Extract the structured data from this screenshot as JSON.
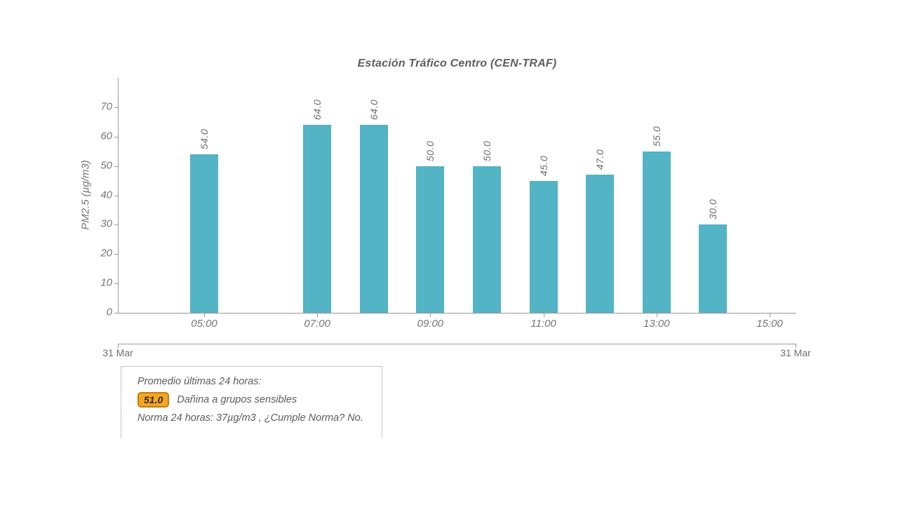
{
  "chart_data": {
    "type": "bar",
    "title": "Estación Tráfico Centro (CEN-TRAF)",
    "xlabel": "",
    "ylabel": "PM2.5 (µg/m3)",
    "grid": false,
    "legend": "none",
    "series": [
      {
        "points": [
          {
            "time": "05:00",
            "value": 54.0,
            "label": "54.0"
          },
          {
            "time": "07:00",
            "value": 64.0,
            "label": "64.0"
          },
          {
            "time": "08:00",
            "value": 64.0,
            "label": "64.0"
          },
          {
            "time": "09:00",
            "value": 50.0,
            "label": "50.0"
          },
          {
            "time": "10:00",
            "value": 50.0,
            "label": "50.0"
          },
          {
            "time": "11:00",
            "value": 45.0,
            "label": "45.0"
          },
          {
            "time": "12:00",
            "value": 47.0,
            "label": "47.0"
          },
          {
            "time": "13:00",
            "value": 55.0,
            "label": "55.0"
          },
          {
            "time": "14:00",
            "value": 30.0,
            "label": "30.0"
          }
        ]
      }
    ],
    "x_axis": {
      "tick_labels": [
        "05:00",
        "07:00",
        "09:00",
        "11:00",
        "13:00",
        "15:00"
      ]
    },
    "y_axis": {
      "ticks": [
        0,
        10,
        20,
        30,
        40,
        50,
        60,
        70
      ],
      "max": 80
    },
    "ylim": [
      0,
      80
    ],
    "date_axis": {
      "start_label": "31 Mar",
      "end_label": "31 Mar"
    },
    "colors": {
      "bar": "#52b4c4",
      "axis": "#9a9a9a",
      "text": "#757575"
    }
  },
  "info_box": {
    "average_title": "Promedio últimas 24 horas:",
    "average_value": "51.0",
    "category": "Dañina a grupos sensibles",
    "norm_line": "Norma 24 horas: 37µg/m3 , ¿Cumple Norma? No.",
    "badge_bg": "#f6a623",
    "badge_border": "#bf7d0e"
  }
}
